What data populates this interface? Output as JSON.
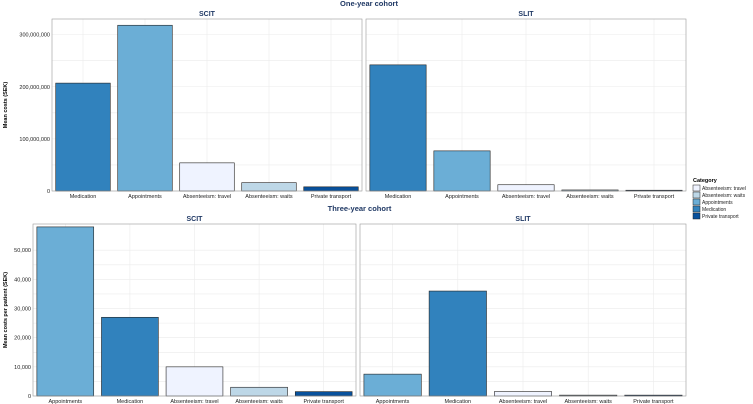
{
  "colors": {
    "Absenteeism: travel": "#eff3ff",
    "Absenteeism: waits": "#bdd7e7",
    "Appointments": "#6baed6",
    "Medication": "#3182bd",
    "Private transport": "#08519c"
  },
  "legend": {
    "title": "Category",
    "items": [
      "Absenteeism: travel",
      "Absenteeism: waits",
      "Appointments",
      "Medication",
      "Private transport"
    ]
  },
  "chart_data": [
    {
      "type": "bar",
      "cohort": "One-year cohort",
      "ylabel": "Mean costs (SEK)",
      "ylim": [
        0,
        330000000
      ],
      "yticks": [
        0,
        100000000,
        200000000,
        300000000
      ],
      "yticklabels": [
        "0",
        "100,000,000",
        "200,000,000",
        "300,000,000"
      ],
      "panels": [
        {
          "title": "SCIT",
          "categories": [
            "Medication",
            "Appointments",
            "Absenteeism: travel",
            "Absenteeism: waits",
            "Private transport"
          ],
          "values": [
            207000000,
            318000000,
            54000000,
            16000000,
            8000000
          ]
        },
        {
          "title": "SLIT",
          "categories": [
            "Medication",
            "Appointments",
            "Absenteeism: travel",
            "Absenteeism: waits",
            "Private transport"
          ],
          "values": [
            242000000,
            77000000,
            12000000,
            2000000,
            1500000
          ]
        }
      ]
    },
    {
      "type": "bar",
      "cohort": "Three-year cohort",
      "ylabel": "Mean costs per patient (SEK)",
      "ylim": [
        0,
        59000
      ],
      "yticks": [
        0,
        10000,
        20000,
        30000,
        40000,
        50000
      ],
      "yticklabels": [
        "0",
        "10,000",
        "20,000",
        "30,000",
        "40,000",
        "50,000"
      ],
      "panels": [
        {
          "title": "SCIT",
          "categories": [
            "Appointments",
            "Medication",
            "Absenteeism: travel",
            "Absenteeism: waits",
            "Private transport"
          ],
          "values": [
            58000,
            27000,
            10000,
            3000,
            1500
          ]
        },
        {
          "title": "SLIT",
          "categories": [
            "Appointments",
            "Medication",
            "Absenteeism: travel",
            "Absenteeism: waits",
            "Private transport"
          ],
          "values": [
            7500,
            36000,
            1500,
            300,
            300
          ]
        }
      ]
    }
  ]
}
